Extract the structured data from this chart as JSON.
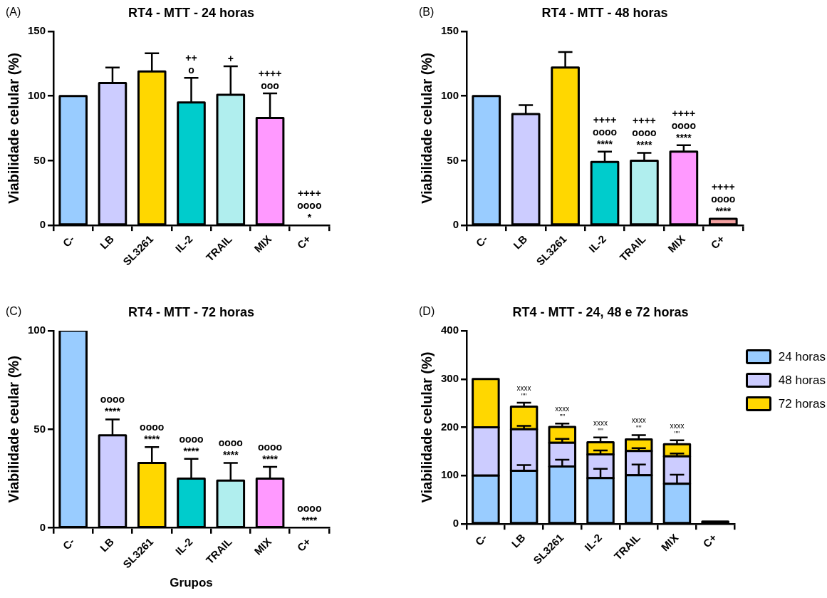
{
  "chart_data": [
    {
      "type": "bar",
      "title": "RT4 - MTT - 24 horas",
      "ylabel": "Viabilidade celular (%)",
      "categories": [
        "C-",
        "LB",
        "SL3261",
        "IL-2",
        "TRAIL",
        "MIX",
        "C+"
      ],
      "values": [
        100,
        110,
        119,
        95,
        101,
        83,
        0
      ],
      "errors": [
        null,
        12,
        14,
        19,
        22,
        19,
        null
      ],
      "colors": [
        "#99ccff",
        "#ccccff",
        "#ffd700",
        "#00cccc",
        "#b0eeee",
        "#ff99ff",
        "#ff9999"
      ],
      "ylim": [
        0,
        150
      ],
      "yticks": [
        0,
        50,
        100,
        150
      ],
      "annotations": [
        "(A)",
        {
          "text": "++",
          "x": "IL-2",
          "y": 114
        },
        {
          "text": "o",
          "x": "IL-2",
          "y": 114
        },
        {
          "text": "+",
          "x": "TRAIL",
          "y": 123
        },
        {
          "text": "++++",
          "x": "MIX",
          "y": 102
        },
        {
          "text": "ooo",
          "x": "MIX",
          "y": 102
        },
        {
          "text": "++++",
          "x": "C+",
          "y": 0
        },
        {
          "text": "oooo",
          "x": "C+",
          "y": 0
        },
        {
          "text": "*",
          "x": "C+",
          "y": 0
        }
      ]
    },
    {
      "type": "bar",
      "title": "RT4 - MTT - 48 horas",
      "ylabel": "Viabilidade celular (%)",
      "categories": [
        "C-",
        "LB",
        "SL3261",
        "IL-2",
        "TRAIL",
        "MIX",
        "C+"
      ],
      "values": [
        100,
        86,
        122,
        49,
        50,
        57,
        5
      ],
      "errors": [
        null,
        7,
        12,
        8,
        6,
        5,
        null
      ],
      "colors": [
        "#99ccff",
        "#ccccff",
        "#ffd700",
        "#00cccc",
        "#b0eeee",
        "#ff99ff",
        "#f4a0a0"
      ],
      "ylim": [
        0,
        150
      ],
      "yticks": [
        0,
        50,
        100,
        150
      ],
      "annotations": [
        "(B)",
        {
          "text": "++++",
          "x": "IL-2",
          "y": 57
        },
        {
          "text": "oooo",
          "x": "IL-2",
          "y": 57
        },
        {
          "text": "****",
          "x": "IL-2",
          "y": 57
        },
        {
          "text": "++++",
          "x": "TRAIL",
          "y": 56
        },
        {
          "text": "oooo",
          "x": "TRAIL",
          "y": 56
        },
        {
          "text": "****",
          "x": "TRAIL",
          "y": 56
        },
        {
          "text": "++++",
          "x": "MIX",
          "y": 62
        },
        {
          "text": "oooo",
          "x": "MIX",
          "y": 62
        },
        {
          "text": "****",
          "x": "MIX",
          "y": 62
        },
        {
          "text": "++++",
          "x": "C+",
          "y": 5
        },
        {
          "text": "oooo",
          "x": "C+",
          "y": 5
        },
        {
          "text": "****",
          "x": "C+",
          "y": 5
        }
      ]
    },
    {
      "type": "bar",
      "title": "RT4 - MTT - 72 horas",
      "xlabel": "Grupos",
      "ylabel": "Viabilidade ceular (%)",
      "categories": [
        "C-",
        "LB",
        "SL3261",
        "IL-2",
        "TRAIL",
        "MIX",
        "C+"
      ],
      "values": [
        100,
        47,
        33,
        25,
        24,
        25,
        0
      ],
      "errors": [
        null,
        8,
        8,
        10,
        9,
        6,
        null
      ],
      "colors": [
        "#99ccff",
        "#ccccff",
        "#ffd700",
        "#00cccc",
        "#b0eeee",
        "#ff99ff",
        "#ff9999"
      ],
      "ylim": [
        0,
        100
      ],
      "yticks": [
        0,
        50,
        100
      ],
      "annotations": [
        "(C)",
        {
          "text": "oooo",
          "x": "LB",
          "y": 55
        },
        {
          "text": "****",
          "x": "LB",
          "y": 55
        },
        {
          "text": "oooo",
          "x": "SL3261",
          "y": 41
        },
        {
          "text": "****",
          "x": "SL3261",
          "y": 41
        },
        {
          "text": "oooo",
          "x": "IL-2",
          "y": 35
        },
        {
          "text": "****",
          "x": "IL-2",
          "y": 35
        },
        {
          "text": "oooo",
          "x": "TRAIL",
          "y": 33
        },
        {
          "text": "****",
          "x": "TRAIL",
          "y": 33
        },
        {
          "text": "oooo",
          "x": "MIX",
          "y": 31
        },
        {
          "text": "****",
          "x": "MIX",
          "y": 31
        },
        {
          "text": "oooo",
          "x": "C+",
          "y": 0
        },
        {
          "text": "****",
          "x": "C+",
          "y": 0
        }
      ]
    },
    {
      "type": "bar",
      "stacked": true,
      "title": "RT4 - MTT - 24, 48 e 72 horas",
      "ylabel": "Viabilidade celular (%)",
      "categories": [
        "C-",
        "LB",
        "SL3261",
        "IL-2",
        "TRAIL",
        "MIX",
        "C+"
      ],
      "legend": "top right",
      "ylim": [
        0,
        400
      ],
      "yticks": [
        0,
        100,
        200,
        300,
        400
      ],
      "series": [
        {
          "name": "24 horas",
          "color": "#99ccff",
          "values": [
            100,
            110,
            119,
            95,
            101,
            83,
            0
          ],
          "errors": [
            null,
            12,
            14,
            19,
            22,
            19,
            null
          ]
        },
        {
          "name": "48 horas",
          "color": "#ccccff",
          "values": [
            100,
            86,
            49,
            49,
            50,
            57,
            5
          ],
          "errors": [
            null,
            7,
            8,
            8,
            6,
            6,
            null
          ]
        },
        {
          "name": "72 horas",
          "color": "#ffd700",
          "values": [
            100,
            47,
            33,
            25,
            24,
            25,
            0
          ],
          "errors": [
            null,
            8,
            7,
            10,
            9,
            8,
            null
          ]
        }
      ],
      "annotations": [
        "(D)",
        {
          "text": "xxxx",
          "x": "LB",
          "y": 251
        },
        {
          "text": "''''",
          "x": "LB",
          "y": 251
        },
        {
          "text": "xxxx",
          "x": "SL3261",
          "y": 208
        },
        {
          "text": "''''",
          "x": "SL3261",
          "y": 208
        },
        {
          "text": "xxxx",
          "x": "IL-2",
          "y": 179
        },
        {
          "text": "''''",
          "x": "IL-2",
          "y": 179
        },
        {
          "text": "xxxx",
          "x": "TRAIL",
          "y": 184
        },
        {
          "text": "''''",
          "x": "TRAIL",
          "y": 184
        },
        {
          "text": "xxxx",
          "x": "MIX",
          "y": 173
        },
        {
          "text": "''''",
          "x": "MIX",
          "y": 173
        }
      ]
    }
  ]
}
